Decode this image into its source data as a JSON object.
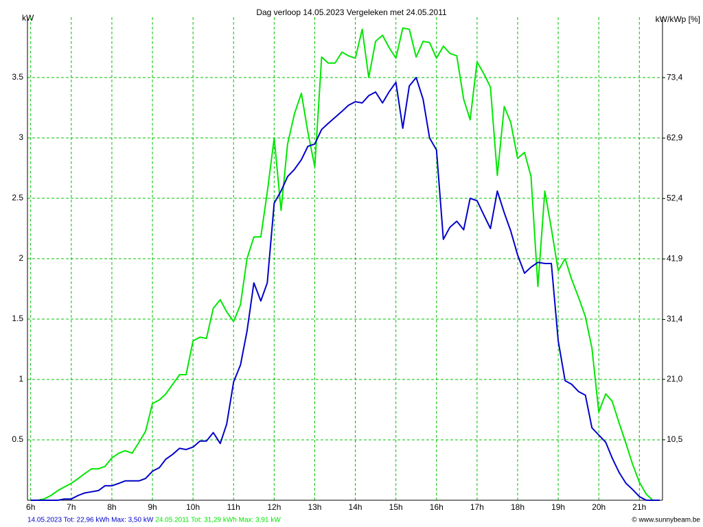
{
  "chart_data": {
    "type": "line",
    "title": "Dag  verloop 14.05.2023   Vergeleken met 24.05.2011",
    "y_label": "kW",
    "y2_label": "kW/kWp [%]",
    "credit": "© www.sunnybeam.be",
    "x": [
      6,
      6.17,
      6.33,
      6.5,
      6.67,
      6.83,
      7,
      7.17,
      7.33,
      7.5,
      7.67,
      7.83,
      8,
      8.17,
      8.33,
      8.5,
      8.67,
      8.83,
      9,
      9.17,
      9.33,
      9.5,
      9.67,
      9.83,
      10,
      10.17,
      10.33,
      10.5,
      10.67,
      10.83,
      11,
      11.17,
      11.33,
      11.5,
      11.67,
      11.83,
      12,
      12.17,
      12.33,
      12.5,
      12.67,
      12.83,
      13,
      13.17,
      13.33,
      13.5,
      13.67,
      13.83,
      14,
      14.17,
      14.33,
      14.5,
      14.67,
      14.83,
      15,
      15.17,
      15.33,
      15.5,
      15.67,
      15.83,
      16,
      16.17,
      16.33,
      16.5,
      16.67,
      16.83,
      17,
      17.17,
      17.33,
      17.5,
      17.67,
      17.83,
      18,
      18.17,
      18.33,
      18.5,
      18.67,
      18.83,
      19,
      19.17,
      19.33,
      19.5,
      19.67,
      19.83,
      20,
      20.17,
      20.33,
      20.5,
      20.67,
      20.83,
      21,
      21.17,
      21.33,
      21.5
    ],
    "series": [
      {
        "name": "14.05.2023 Tot: 22,96 kWh Max: 3,50 kW",
        "color": "#0000c8",
        "values": [
          0,
          0,
          0,
          0,
          0,
          0.01,
          0.01,
          0.04,
          0.06,
          0.07,
          0.08,
          0.12,
          0.12,
          0.14,
          0.16,
          0.16,
          0.16,
          0.18,
          0.24,
          0.27,
          0.34,
          0.38,
          0.43,
          0.42,
          0.44,
          0.49,
          0.49,
          0.56,
          0.47,
          0.63,
          0.98,
          1.12,
          1.4,
          1.8,
          1.65,
          1.8,
          2.46,
          2.56,
          2.68,
          2.74,
          2.82,
          2.93,
          2.95,
          3.07,
          3.12,
          3.17,
          3.22,
          3.27,
          3.3,
          3.29,
          3.35,
          3.38,
          3.29,
          3.38,
          3.46,
          3.08,
          3.43,
          3.5,
          3.32,
          3.0,
          2.9,
          2.16,
          2.26,
          2.31,
          2.24,
          2.5,
          2.48,
          2.36,
          2.25,
          2.56,
          2.38,
          2.23,
          2.03,
          1.88,
          1.93,
          1.97,
          1.96,
          1.96,
          1.32,
          0.99,
          0.96,
          0.9,
          0.87,
          0.6,
          0.54,
          0.48,
          0.35,
          0.23,
          0.14,
          0.09,
          0.03,
          0,
          0,
          0
        ]
      },
      {
        "name": "24.05.2011 Tot: 31,29 kWh Max: 3,91 kW",
        "color": "#00e600",
        "values": [
          0,
          0,
          0.01,
          0.04,
          0.08,
          0.11,
          0.14,
          0.18,
          0.22,
          0.26,
          0.26,
          0.28,
          0.35,
          0.39,
          0.41,
          0.39,
          0.48,
          0.57,
          0.8,
          0.83,
          0.88,
          0.96,
          1.04,
          1.04,
          1.32,
          1.35,
          1.34,
          1.59,
          1.66,
          1.56,
          1.48,
          1.62,
          2.0,
          2.18,
          2.18,
          2.55,
          3.0,
          2.4,
          2.95,
          3.2,
          3.37,
          3.05,
          2.76,
          3.67,
          3.62,
          3.62,
          3.71,
          3.68,
          3.66,
          3.9,
          3.5,
          3.8,
          3.85,
          3.75,
          3.66,
          3.91,
          3.9,
          3.67,
          3.8,
          3.79,
          3.66,
          3.76,
          3.7,
          3.68,
          3.32,
          3.15,
          3.63,
          3.53,
          3.42,
          2.69,
          3.26,
          3.13,
          2.83,
          2.88,
          2.68,
          1.77,
          2.56,
          2.25,
          1.9,
          2.0,
          1.83,
          1.68,
          1.52,
          1.26,
          0.73,
          0.88,
          0.82,
          0.64,
          0.47,
          0.3,
          0.15,
          0.05,
          0,
          0
        ]
      }
    ],
    "xlim": [
      5.92,
      21.57
    ],
    "xticks": [
      {
        "value": 6,
        "label": "6h"
      },
      {
        "value": 7,
        "label": "7h"
      },
      {
        "value": 8,
        "label": "8h"
      },
      {
        "value": 9,
        "label": "9h"
      },
      {
        "value": 10,
        "label": "10h"
      },
      {
        "value": 11,
        "label": "11h"
      },
      {
        "value": 12,
        "label": "12h"
      },
      {
        "value": 13,
        "label": "13h"
      },
      {
        "value": 14,
        "label": "14h"
      },
      {
        "value": 15,
        "label": "15h"
      },
      {
        "value": 16,
        "label": "16h"
      },
      {
        "value": 17,
        "label": "17h"
      },
      {
        "value": 18,
        "label": "18h"
      },
      {
        "value": 19,
        "label": "19h"
      },
      {
        "value": 20,
        "label": "20h"
      },
      {
        "value": 21,
        "label": "21h"
      }
    ],
    "ylim": [
      0,
      4
    ],
    "yticks": [
      0.5,
      1,
      1.5,
      2,
      2.5,
      3,
      3.5
    ],
    "y2lim": [
      0,
      83.9
    ],
    "y2ticks": [
      {
        "value": 10.5,
        "label": "10,5"
      },
      {
        "value": 21.0,
        "label": "21,0"
      },
      {
        "value": 31.4,
        "label": "31,4"
      },
      {
        "value": 41.9,
        "label": "41,9"
      },
      {
        "value": 52.4,
        "label": "52,4"
      },
      {
        "value": 62.9,
        "label": "62,9"
      },
      {
        "value": 73.4,
        "label": "73,4"
      }
    ],
    "grid": true,
    "grid_color": "#00c000"
  }
}
